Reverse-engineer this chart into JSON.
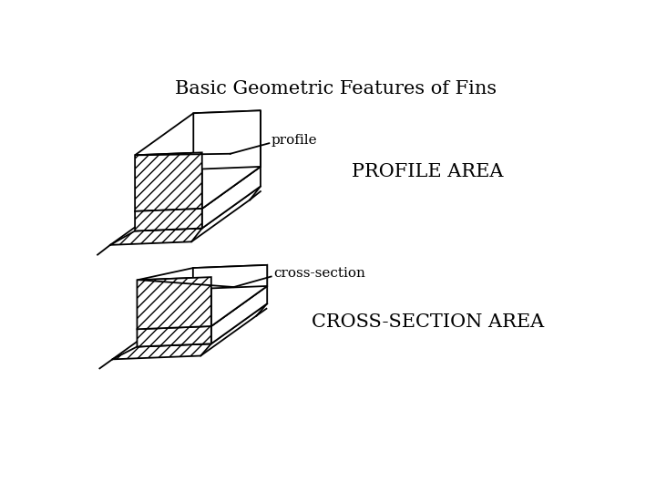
{
  "title": "Basic Geometric Features of Fins",
  "title_fontsize": 15,
  "background_color": "#ffffff",
  "label1": "profile",
  "label2": "PROFILE AREA",
  "label3": "cross-section",
  "label4": "CROSS-SECTION AREA",
  "label1_fontsize": 11,
  "label2_fontsize": 15,
  "label3_fontsize": 11,
  "label4_fontsize": 15
}
